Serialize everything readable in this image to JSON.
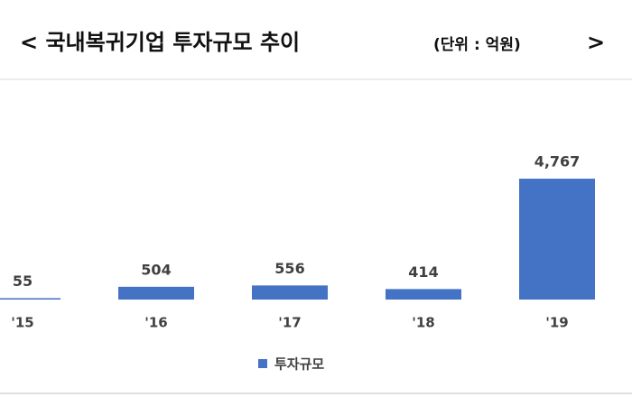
{
  "chart_data": {
    "type": "bar",
    "title": "< 국내복귀기업 투자규모 추이",
    "subtitle": "(단위 : 억원)",
    "title_suffix": ">",
    "categories": [
      "'15",
      "'16",
      "'17",
      "'18",
      "'19"
    ],
    "series": [
      {
        "name": "투자규모",
        "color": "#4472c4",
        "values": [
          55,
          504,
          556,
          414,
          4767
        ],
        "value_labels": [
          "55",
          "504",
          "556",
          "414",
          "4,767"
        ]
      }
    ],
    "ylim": [
      0,
      5000
    ],
    "legend": "bottom"
  }
}
